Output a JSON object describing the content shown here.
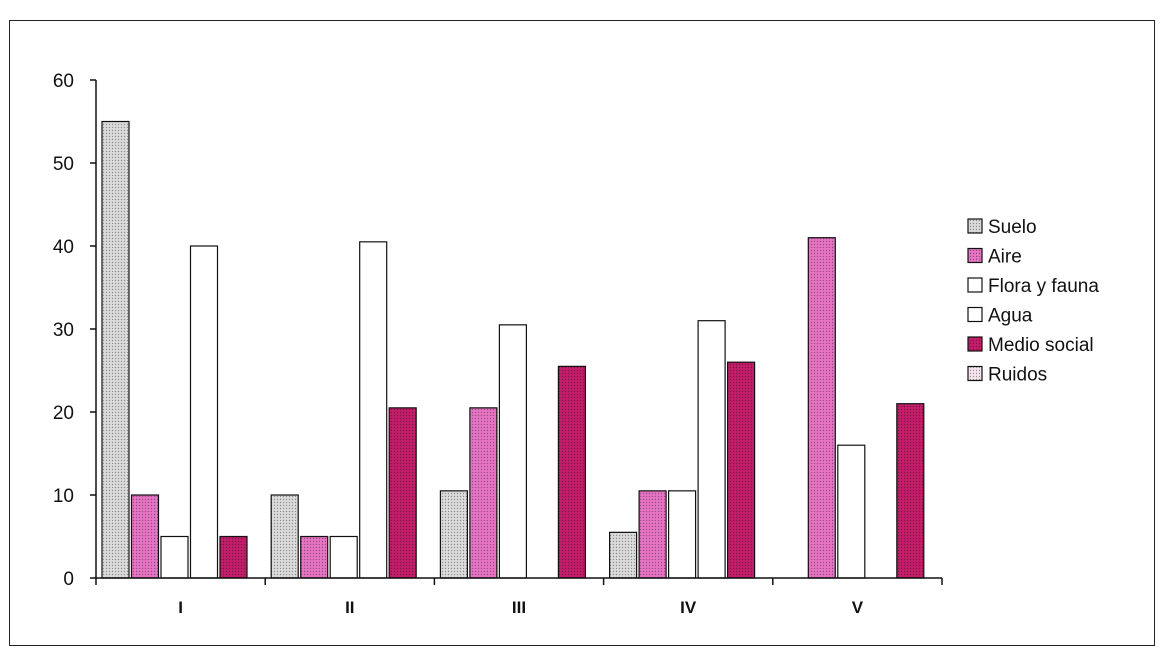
{
  "chart_data": {
    "type": "bar",
    "title": "",
    "xlabel": "",
    "ylabel": "",
    "categories": [
      "I",
      "II",
      "III",
      "IV",
      "V"
    ],
    "ylim": [
      0,
      60
    ],
    "yticks": [
      0,
      10,
      20,
      30,
      40,
      50,
      60
    ],
    "grid": false,
    "legend_position": "right",
    "series": [
      {
        "name": "Suelo",
        "values": [
          55,
          10,
          10.5,
          5.5,
          0
        ],
        "color": "#dcdcdc",
        "pattern": "dots"
      },
      {
        "name": "Aire",
        "values": [
          10,
          5,
          20.5,
          10.5,
          41
        ],
        "color": "#e874c4",
        "pattern": "dots"
      },
      {
        "name": "Flora y fauna",
        "values": [
          5,
          5,
          30.5,
          10.5,
          16
        ],
        "color": "#ffffff",
        "pattern": "none"
      },
      {
        "name": "Agua",
        "values": [
          40,
          40.5,
          0,
          31,
          0
        ],
        "color": "#ffffff",
        "pattern": "none"
      },
      {
        "name": "Medio social",
        "values": [
          5,
          20.5,
          25.5,
          26,
          21
        ],
        "color": "#c41e6a",
        "pattern": "dots"
      },
      {
        "name": "Ruidos",
        "values": [
          0,
          0,
          0,
          0,
          0
        ],
        "color": "#f6e6ef",
        "pattern": "dots"
      }
    ]
  }
}
